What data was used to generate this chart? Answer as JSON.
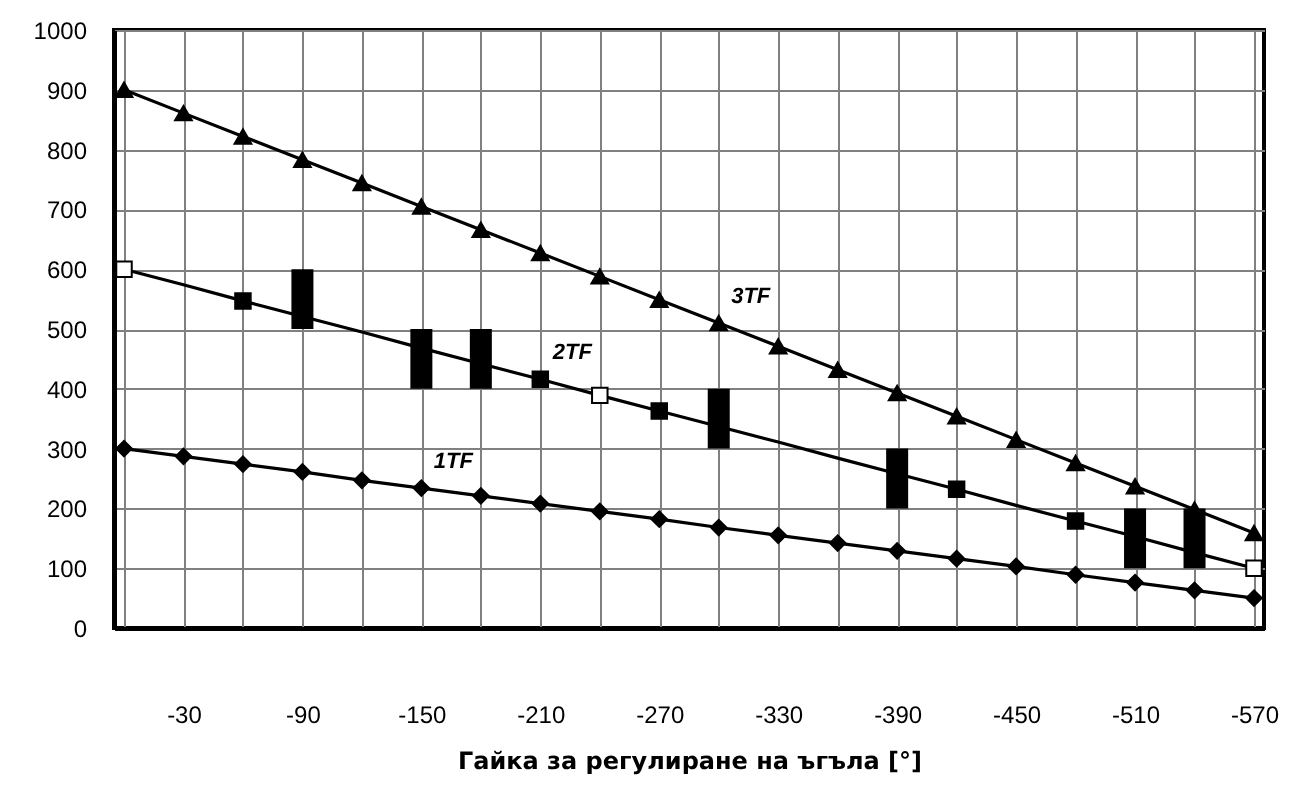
{
  "chart_data": {
    "type": "line",
    "xlabel": "Гайка за регулиране на ъгъла [°]",
    "x": [
      0,
      -30,
      -60,
      -90,
      -120,
      -150,
      -180,
      -210,
      -240,
      -270,
      -300,
      -330,
      -360,
      -390,
      -420,
      -450,
      -480,
      -510,
      -540,
      -570
    ],
    "xlim": [
      0,
      -570
    ],
    "xticks": [
      {
        "value": 0,
        "label": null
      },
      -30,
      {
        "value": -60,
        "label": null
      },
      -90,
      {
        "value": -120,
        "label": null
      },
      -150,
      {
        "value": -180,
        "label": null
      },
      -210,
      {
        "value": -240,
        "label": null
      },
      -270,
      {
        "value": -300,
        "label": null
      },
      -330,
      {
        "value": -360,
        "label": null
      },
      -390,
      {
        "value": -420,
        "label": null
      },
      -450,
      {
        "value": -480,
        "label": null
      },
      -510,
      {
        "value": -540,
        "label": null
      },
      -570
    ],
    "ylim": [
      0,
      1000
    ],
    "yticks": [
      0,
      100,
      200,
      300,
      400,
      500,
      600,
      700,
      800,
      900,
      1000
    ],
    "grid": true,
    "series": [
      {
        "name": "1TF",
        "color": "#000000",
        "marker": "diamond",
        "values": [
          300,
          287,
          274,
          261,
          247,
          234,
          221,
          208,
          195,
          182,
          168,
          155,
          142,
          129,
          116,
          103,
          89,
          76,
          63,
          50
        ]
      },
      {
        "name": "2TF",
        "color": "#000000",
        "marker": "none",
        "values": [
          600,
          574,
          547,
          521,
          495,
          468,
          442,
          416,
          389,
          363,
          337,
          311,
          284,
          258,
          232,
          205,
          179,
          153,
          126,
          100
        ]
      },
      {
        "name": "3TF",
        "color": "#000000",
        "marker": "triangle",
        "values": [
          900,
          861,
          822,
          783,
          744,
          705,
          666,
          627,
          588,
          549,
          510,
          471,
          432,
          393,
          354,
          315,
          276,
          237,
          198,
          159
        ]
      },
      {
        "type": "scatter",
        "color": "#000000",
        "marker": "square",
        "values": [
          null,
          null,
          547,
          null,
          null,
          null,
          null,
          416,
          null,
          363,
          null,
          null,
          null,
          null,
          232,
          null,
          179,
          null,
          null,
          null
        ]
      },
      {
        "type": "scatter",
        "color": "#ffffff",
        "marker": "square",
        "values": [
          600,
          null,
          null,
          null,
          null,
          null,
          null,
          null,
          389,
          null,
          null,
          null,
          null,
          null,
          null,
          null,
          null,
          null,
          null,
          100
        ]
      },
      {
        "type": "bar",
        "color": "#000000",
        "x": [
          -90,
          -150,
          -180,
          -300,
          -390,
          -510,
          -540
        ],
        "base": [
          500,
          400,
          400,
          300,
          200,
          100,
          100
        ],
        "values": [
          100,
          100,
          100,
          100,
          100,
          100,
          100
        ]
      }
    ]
  }
}
